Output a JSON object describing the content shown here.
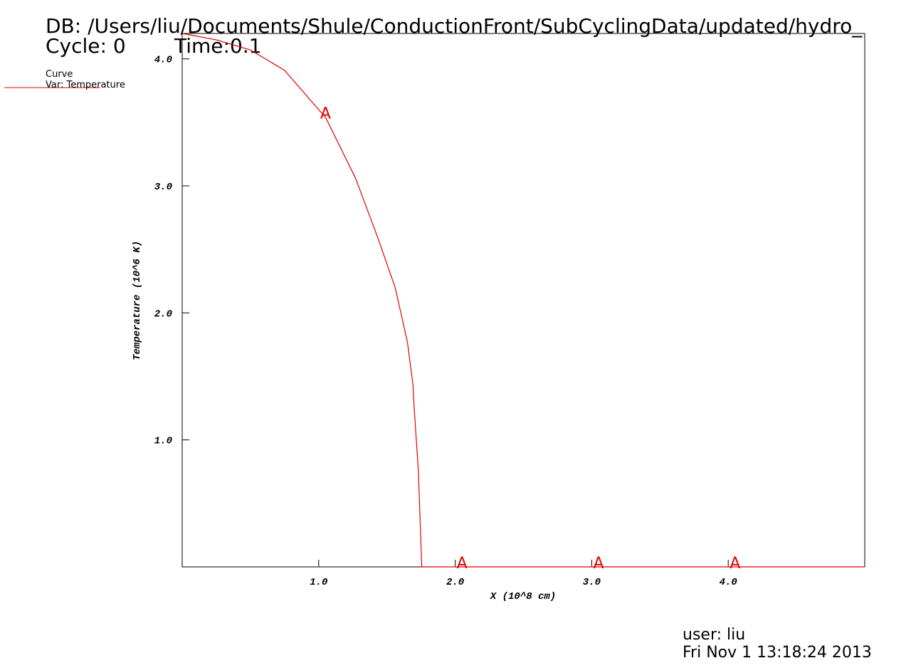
{
  "db": "DB: /Users/liu/Documents/Shule/ConductionFront/SubCyclingData/updated/hydro_",
  "cycle": "Cycle: 0",
  "time": "Time:0.1",
  "user": "user: liu",
  "date": "Fri Nov  1 13:18:24 2013",
  "chart_data": {
    "type": "line",
    "xlabel": "X (10^8 cm)",
    "ylabel": "Temperature (10^6 K)",
    "legend_title": "Curve",
    "xlim": [
      0,
      5.0
    ],
    "ylim": [
      0,
      4.2
    ],
    "xticks": [
      {
        "value": 1,
        "label": "1.0"
      },
      {
        "value": 2,
        "label": "2.0"
      },
      {
        "value": 3,
        "label": "3.0"
      },
      {
        "value": 4,
        "label": "4.0"
      }
    ],
    "yticks": [
      {
        "value": 1,
        "label": "1.0"
      },
      {
        "value": 2,
        "label": "2.0"
      },
      {
        "value": 3,
        "label": "3.0"
      },
      {
        "value": 4,
        "label": "4.0"
      }
    ],
    "series": [
      {
        "name": "Var: Temperature",
        "color": "#e00000",
        "x": [
          0,
          0.25,
          0.5,
          0.75,
          1.0,
          1.05,
          1.27,
          1.43,
          1.56,
          1.65,
          1.69,
          1.7,
          1.73,
          1.755,
          2.05,
          3.05,
          4.05,
          5.0
        ],
        "values": [
          4.2,
          4.15,
          4.07,
          3.91,
          3.6,
          3.54,
          3.06,
          2.6,
          2.2,
          1.77,
          1.44,
          1.24,
          0.76,
          0,
          0,
          0,
          0,
          0
        ]
      }
    ],
    "markers": {
      "label": "A",
      "x": [
        1.05,
        2.05,
        3.05,
        4.05
      ],
      "y": [
        3.54,
        0,
        0,
        0
      ]
    }
  }
}
